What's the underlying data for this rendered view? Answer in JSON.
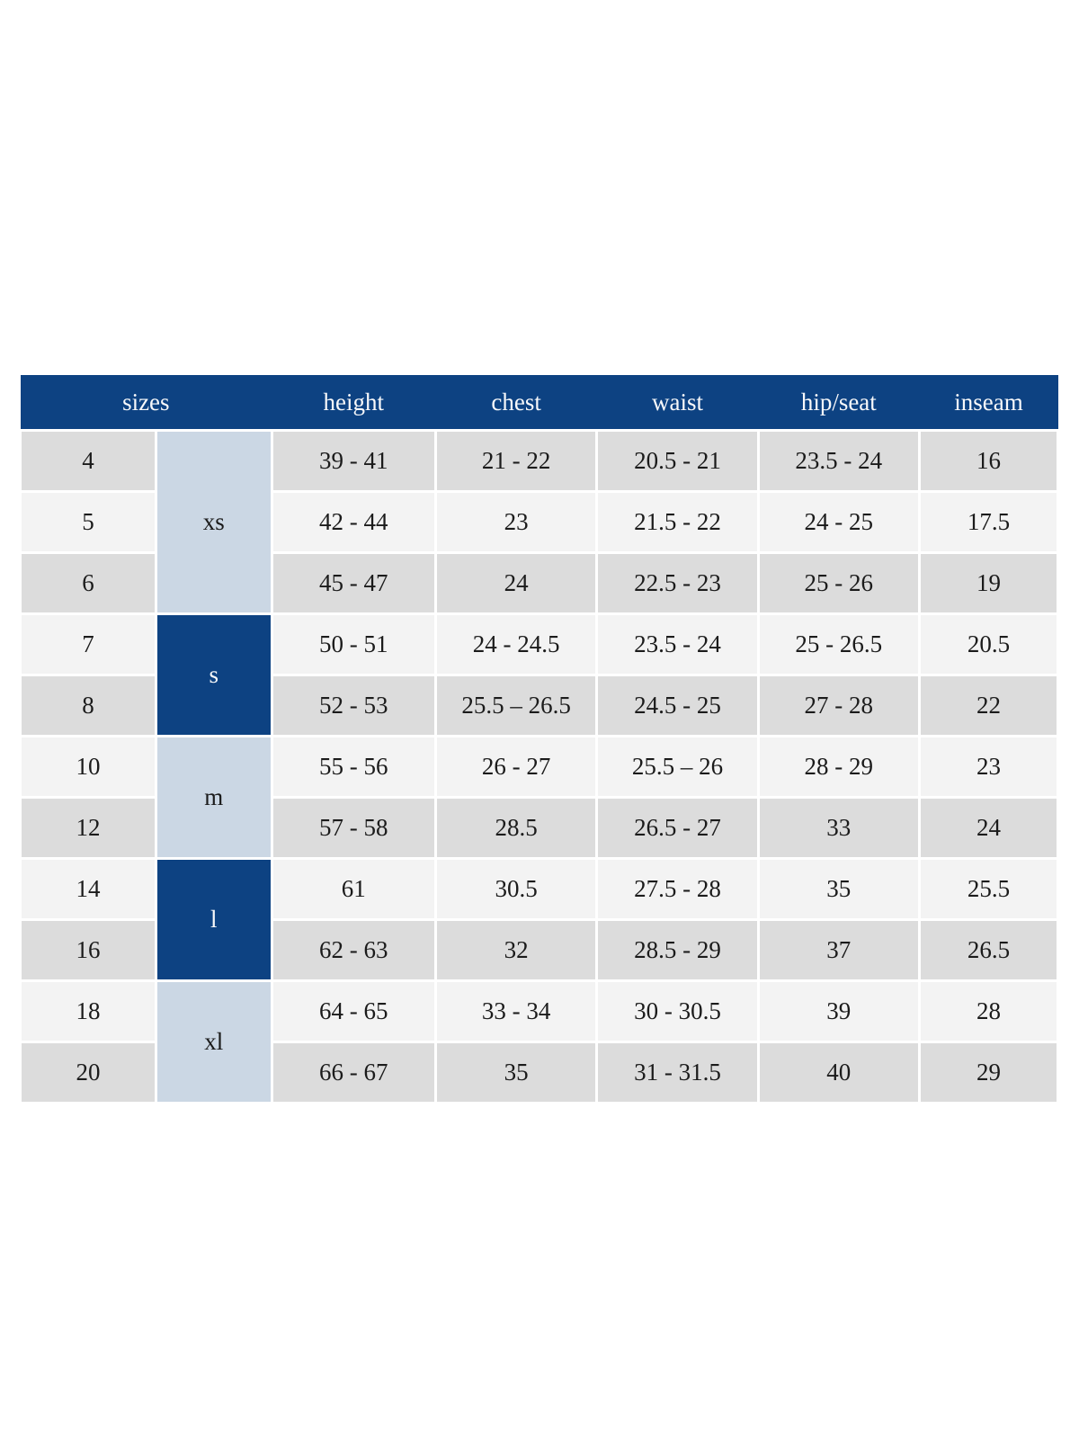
{
  "colors": {
    "header_bg": "#0d4282",
    "header_text": "#f7f8fa",
    "group_light_bg": "#cbd7e4",
    "group_dark_bg": "#0d4282",
    "row_gray_bg": "#dcdcdc",
    "row_light_bg": "#f3f3f3",
    "cell_text": "#1b1b1b",
    "grid_gap": "#ffffff"
  },
  "chart_data": {
    "type": "table",
    "header": {
      "sizes": "sizes",
      "height": "height",
      "chest": "chest",
      "waist": "waist",
      "hip_seat": "hip/seat",
      "inseam": "inseam"
    },
    "size_groups": {
      "xs": {
        "label": "xs",
        "span": 3,
        "style": "light"
      },
      "s": {
        "label": "s",
        "span": 2,
        "style": "dark"
      },
      "m": {
        "label": "m",
        "span": 2,
        "style": "light"
      },
      "l": {
        "label": "l",
        "span": 2,
        "style": "dark"
      },
      "xl": {
        "label": "xl",
        "span": 2,
        "style": "light"
      }
    },
    "rows": [
      {
        "size": "4",
        "group": "xs",
        "height": "39 - 41",
        "chest": "21 - 22",
        "waist": "20.5 - 21",
        "hip_seat": "23.5 - 24",
        "inseam": "16",
        "shade": "gray"
      },
      {
        "size": "5",
        "height": "42 - 44",
        "chest": "23",
        "waist": "21.5 - 22",
        "hip_seat": "24 - 25",
        "inseam": "17.5",
        "shade": "light"
      },
      {
        "size": "6",
        "height": "45 - 47",
        "chest": "24",
        "waist": "22.5 - 23",
        "hip_seat": "25 - 26",
        "inseam": "19",
        "shade": "gray"
      },
      {
        "size": "7",
        "group": "s",
        "height": "50 - 51",
        "chest": "24 - 24.5",
        "waist": "23.5 - 24",
        "hip_seat": "25 - 26.5",
        "inseam": "20.5",
        "shade": "light"
      },
      {
        "size": "8",
        "height": "52 - 53",
        "chest": "25.5 – 26.5",
        "waist": "24.5 - 25",
        "hip_seat": "27 - 28",
        "inseam": "22",
        "shade": "gray"
      },
      {
        "size": "10",
        "group": "m",
        "height": "55 - 56",
        "chest": "26 - 27",
        "waist": "25.5 – 26",
        "hip_seat": "28 - 29",
        "inseam": "23",
        "shade": "light"
      },
      {
        "size": "12",
        "height": "57 - 58",
        "chest": "28.5",
        "waist": "26.5 - 27",
        "hip_seat": "33",
        "inseam": "24",
        "shade": "gray"
      },
      {
        "size": "14",
        "group": "l",
        "height": "61",
        "chest": "30.5",
        "waist": "27.5 - 28",
        "hip_seat": "35",
        "inseam": "25.5",
        "shade": "light"
      },
      {
        "size": "16",
        "height": "62 - 63",
        "chest": "32",
        "waist": "28.5 - 29",
        "hip_seat": "37",
        "inseam": "26.5",
        "shade": "gray"
      },
      {
        "size": "18",
        "group": "xl",
        "height": "64 - 65",
        "chest": "33 - 34",
        "waist": "30 - 30.5",
        "hip_seat": "39",
        "inseam": "28",
        "shade": "light"
      },
      {
        "size": "20",
        "height": "66 - 67",
        "chest": "35",
        "waist": "31 - 31.5",
        "hip_seat": "40",
        "inseam": "29",
        "shade": "gray"
      }
    ]
  }
}
